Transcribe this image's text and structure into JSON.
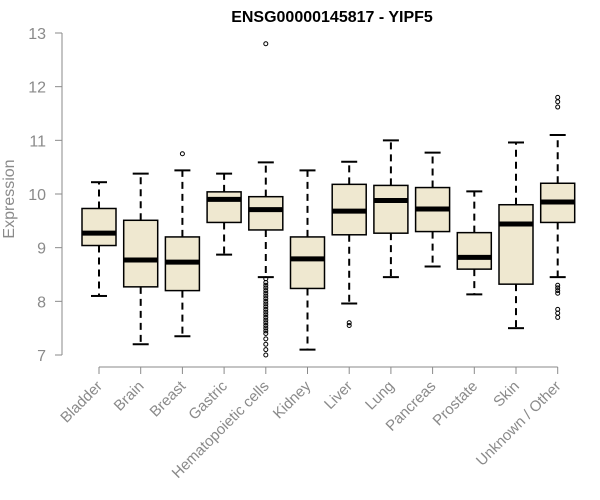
{
  "chart_data": {
    "type": "box",
    "title": "ENSG00000145817 - YIPF5",
    "ylabel": "Expression",
    "xlabel": "",
    "ylim": [
      7,
      13
    ],
    "yticks": [
      7,
      8,
      9,
      10,
      11,
      12,
      13
    ],
    "grid": false,
    "categories": [
      "Bladder",
      "Brain",
      "Breast",
      "Gastric",
      "Hematopoietic cells",
      "Kidney",
      "Liver",
      "Lung",
      "Pancreas",
      "Prostate",
      "Skin",
      "Unknown / Other"
    ],
    "boxes": [
      {
        "whisker_low": 8.1,
        "q1": 9.04,
        "median": 9.27,
        "q3": 9.73,
        "whisker_high": 10.22,
        "outliers": []
      },
      {
        "whisker_low": 7.2,
        "q1": 8.27,
        "median": 8.77,
        "q3": 9.51,
        "whisker_high": 10.38,
        "outliers": []
      },
      {
        "whisker_low": 7.35,
        "q1": 8.2,
        "median": 8.73,
        "q3": 9.2,
        "whisker_high": 10.44,
        "outliers": [
          10.75
        ]
      },
      {
        "whisker_low": 8.87,
        "q1": 9.47,
        "median": 9.9,
        "q3": 10.04,
        "whisker_high": 10.38,
        "outliers": []
      },
      {
        "whisker_low": 8.45,
        "q1": 9.33,
        "median": 9.71,
        "q3": 9.95,
        "whisker_high": 10.59,
        "outliers": [
          12.8,
          8.42,
          8.35,
          8.3,
          8.25,
          8.2,
          8.15,
          8.1,
          8.05,
          8.0,
          7.95,
          7.9,
          7.85,
          7.8,
          7.75,
          7.7,
          7.65,
          7.6,
          7.55,
          7.5,
          7.45,
          7.4,
          7.3,
          7.2,
          7.1,
          7.0
        ]
      },
      {
        "whisker_low": 7.1,
        "q1": 8.24,
        "median": 8.79,
        "q3": 9.2,
        "whisker_high": 10.44,
        "outliers": []
      },
      {
        "whisker_low": 7.96,
        "q1": 9.24,
        "median": 9.68,
        "q3": 10.18,
        "whisker_high": 10.6,
        "outliers": [
          7.6,
          7.55
        ]
      },
      {
        "whisker_low": 8.45,
        "q1": 9.27,
        "median": 9.88,
        "q3": 10.16,
        "whisker_high": 11.0,
        "outliers": []
      },
      {
        "whisker_low": 8.65,
        "q1": 9.3,
        "median": 9.72,
        "q3": 10.12,
        "whisker_high": 10.77,
        "outliers": []
      },
      {
        "whisker_low": 8.13,
        "q1": 8.6,
        "median": 8.82,
        "q3": 9.28,
        "whisker_high": 10.05,
        "outliers": []
      },
      {
        "whisker_low": 7.5,
        "q1": 8.32,
        "median": 9.44,
        "q3": 9.8,
        "whisker_high": 10.96,
        "outliers": []
      },
      {
        "whisker_low": 8.45,
        "q1": 9.47,
        "median": 9.85,
        "q3": 10.2,
        "whisker_high": 11.1,
        "outliers": [
          11.8,
          11.72,
          11.62,
          8.3,
          8.25,
          8.2,
          8.15,
          7.85,
          7.78,
          7.7
        ]
      }
    ],
    "colors": {
      "box_fill": "#efe8d0",
      "box_stroke": "#000000",
      "median": "#000000",
      "axis": "#8a8a8a"
    }
  }
}
